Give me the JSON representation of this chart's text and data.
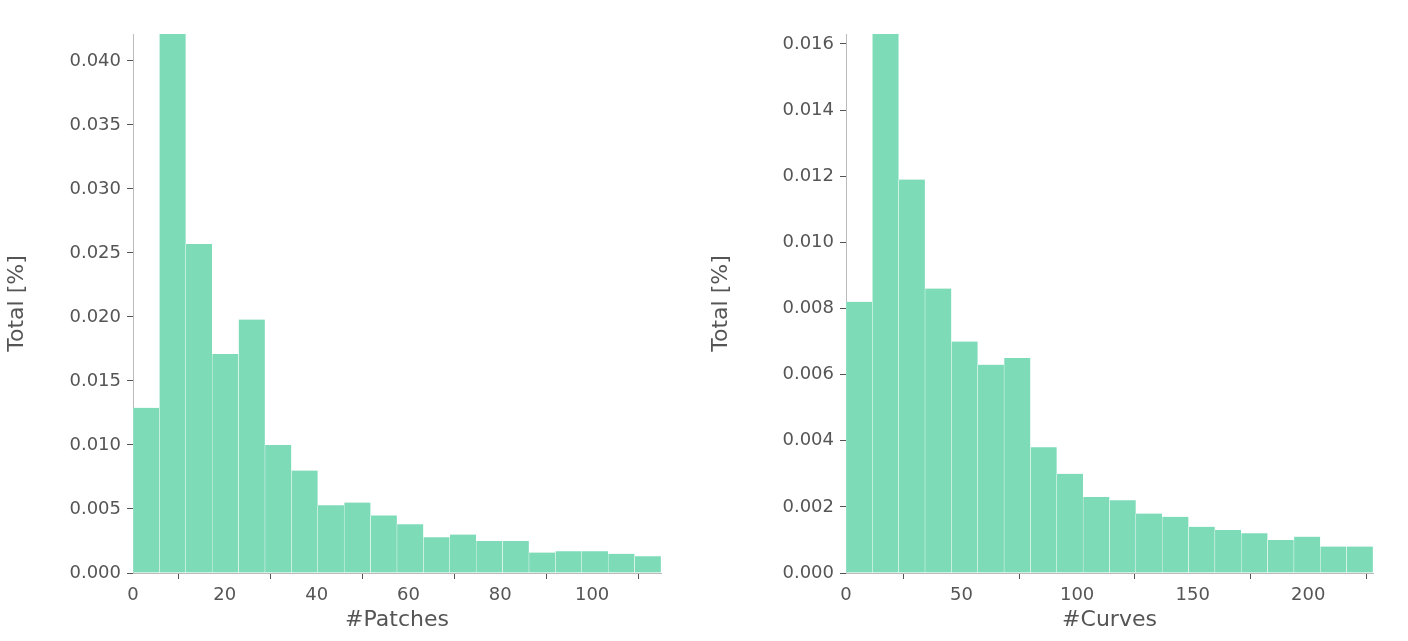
{
  "chart_data": [
    {
      "type": "histogram",
      "xlabel": "#Patches",
      "ylabel": "Total [%]",
      "color": "#7ddbb8",
      "bins": [
        0,
        5.75,
        11.5,
        17.25,
        23,
        28.75,
        34.5,
        40.25,
        46,
        51.75,
        57.5,
        63.25,
        69,
        74.75,
        80.5,
        86.25,
        92,
        97.75,
        103.5,
        109.25,
        115
      ],
      "values": [
        0.0129,
        0.0421,
        0.0257,
        0.0171,
        0.0198,
        0.01,
        0.008,
        0.0053,
        0.0055,
        0.0045,
        0.0038,
        0.0028,
        0.003,
        0.0025,
        0.0025,
        0.0016,
        0.0017,
        0.0017,
        0.0015,
        0.0013
      ],
      "xlim": [
        0,
        115
      ],
      "xticks": [
        0,
        20,
        40,
        60,
        80,
        100
      ],
      "ylim": [
        0,
        0.0421
      ],
      "yticks": [
        {
          "value": 0,
          "label": "0.000"
        },
        {
          "value": 0.005,
          "label": "0.005"
        },
        {
          "value": 0.01,
          "label": "0.010"
        },
        {
          "value": 0.015,
          "label": "0.015"
        },
        {
          "value": 0.02,
          "label": "0.020"
        },
        {
          "value": 0.025,
          "label": "0.025"
        },
        {
          "value": 0.03,
          "label": "0.030"
        },
        {
          "value": 0.035,
          "label": "0.035"
        },
        {
          "value": 0.04,
          "label": "0.040"
        }
      ]
    },
    {
      "type": "histogram",
      "xlabel": "#Curves",
      "ylabel": "Total [%]",
      "color": "#7ddbb8",
      "bins": [
        0,
        11.4,
        22.8,
        34.2,
        45.6,
        57,
        68.4,
        79.8,
        91.2,
        102.6,
        114,
        125.4,
        136.8,
        148.2,
        159.6,
        171,
        182.4,
        193.8,
        205.2,
        216.6,
        228
      ],
      "values": [
        0.0082,
        0.0163,
        0.0119,
        0.0086,
        0.007,
        0.0063,
        0.0065,
        0.0038,
        0.003,
        0.0023,
        0.0022,
        0.0018,
        0.0017,
        0.0014,
        0.0013,
        0.0012,
        0.001,
        0.0011,
        0.0008,
        0.0008
      ],
      "xlim": [
        0,
        228
      ],
      "xticks": [
        0,
        50,
        100,
        150,
        200
      ],
      "ylim": [
        0,
        0.0163
      ],
      "yticks": [
        {
          "value": 0,
          "label": "0.000"
        },
        {
          "value": 0.002,
          "label": "0.002"
        },
        {
          "value": 0.004,
          "label": "0.004"
        },
        {
          "value": 0.006,
          "label": "0.006"
        },
        {
          "value": 0.008,
          "label": "0.008"
        },
        {
          "value": 0.01,
          "label": "0.010"
        },
        {
          "value": 0.012,
          "label": "0.012"
        },
        {
          "value": 0.014,
          "label": "0.014"
        },
        {
          "value": 0.016,
          "label": "0.016"
        }
      ]
    }
  ]
}
